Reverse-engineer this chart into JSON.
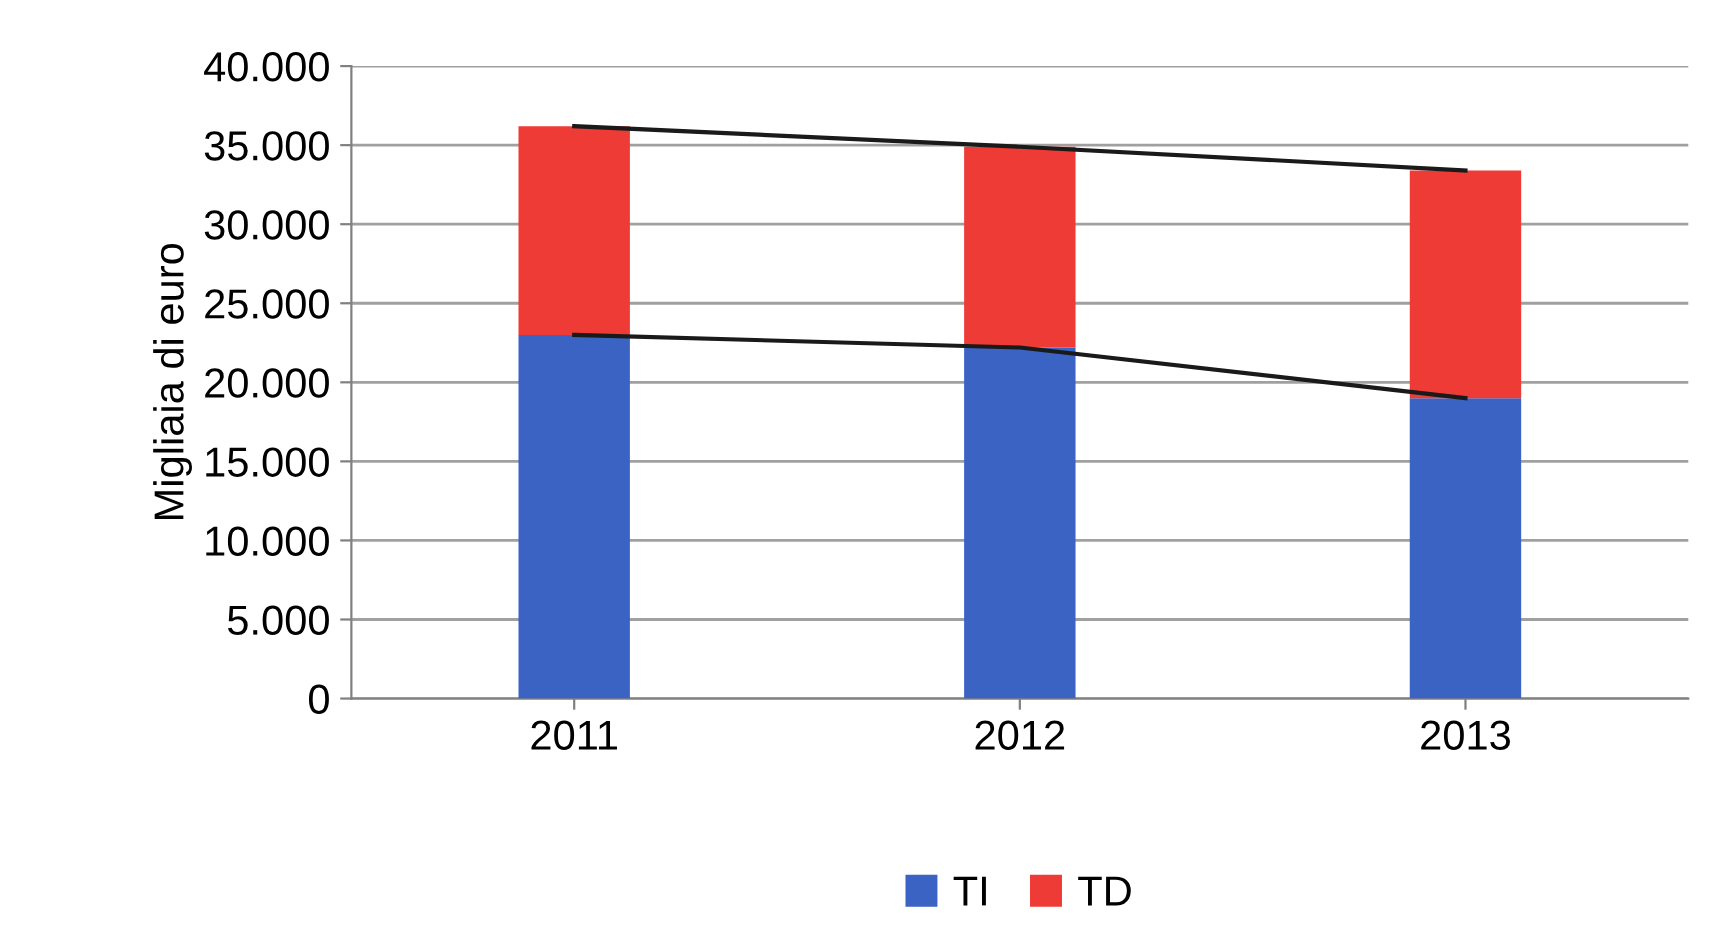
{
  "chart_data": {
    "type": "bar",
    "stacked": true,
    "ylabel": "Migliaia di euro",
    "categories": [
      "2011",
      "2012",
      "2013"
    ],
    "series": [
      {
        "name": "TI",
        "color": "#3a63c4",
        "values": [
          23000,
          22200,
          19000
        ]
      },
      {
        "name": "TD",
        "color": "#ee3b36",
        "values": [
          13200,
          12700,
          14400
        ]
      },
      {
        "type": "line",
        "color": "#1a1a1a",
        "values": [
          23000,
          22200,
          19000
        ]
      },
      {
        "type": "line",
        "color": "#1a1a1a",
        "values": [
          36200,
          34900,
          33400
        ]
      }
    ],
    "ylim": [
      0,
      40000
    ],
    "yticks": [
      {
        "value": 0,
        "label": "0"
      },
      {
        "value": 5000,
        "label": "5.000"
      },
      {
        "value": 10000,
        "label": "10.000"
      },
      {
        "value": 15000,
        "label": "15.000"
      },
      {
        "value": 20000,
        "label": "20.000"
      },
      {
        "value": 25000,
        "label": "25.000"
      },
      {
        "value": 30000,
        "label": "30.000"
      },
      {
        "value": 35000,
        "label": "35.000"
      },
      {
        "value": 40000,
        "label": "40.000"
      }
    ],
    "grid": "y",
    "legend": "bottom"
  }
}
